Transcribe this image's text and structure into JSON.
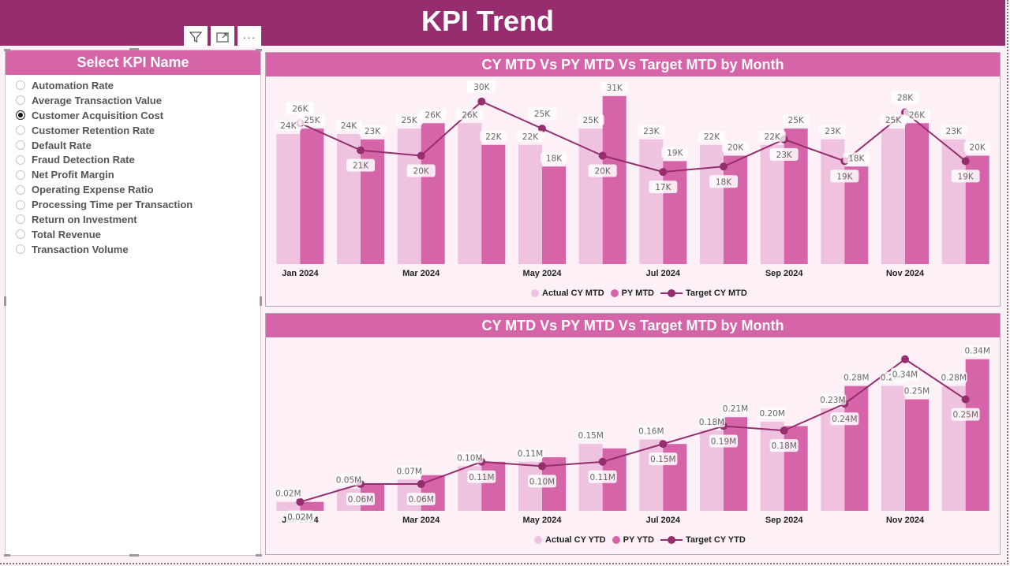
{
  "header": {
    "title": "KPI Trend"
  },
  "toolbar": {
    "filter_icon": "filter-icon",
    "focus_icon": "focus-mode-icon",
    "more_icon": "more-options-icon",
    "more_label": "···"
  },
  "slicer": {
    "title": "Select KPI Name",
    "selected": "Customer Acquisition Cost",
    "items": [
      {
        "label": "Automation Rate",
        "selected": false
      },
      {
        "label": "Average Transaction Value",
        "selected": false
      },
      {
        "label": "Customer Acquisition Cost",
        "selected": true
      },
      {
        "label": "Customer Retention Rate",
        "selected": false
      },
      {
        "label": "Default Rate",
        "selected": false
      },
      {
        "label": "Fraud Detection Rate",
        "selected": false
      },
      {
        "label": "Net Profit Margin",
        "selected": false
      },
      {
        "label": "Operating Expense Ratio",
        "selected": false
      },
      {
        "label": "Processing Time per Transaction",
        "selected": false
      },
      {
        "label": "Return on Investment",
        "selected": false
      },
      {
        "label": "Total Revenue",
        "selected": false
      },
      {
        "label": "Transaction Volume",
        "selected": false
      }
    ]
  },
  "colors": {
    "header": "#952d6e",
    "actual": "#efc3df",
    "py": "#d664a8",
    "target": "#952d6e",
    "card_head": "#d664a8"
  },
  "chart_data": [
    {
      "type": "bar",
      "title": "CY MTD Vs PY MTD Vs Target MTD by Month",
      "categories": [
        "Jan 2024",
        "Feb 2024",
        "Mar 2024",
        "Apr 2024",
        "May 2024",
        "Jun 2024",
        "Jul 2024",
        "Aug 2024",
        "Sep 2024",
        "Oct 2024",
        "Nov 2024",
        "Dec 2024"
      ],
      "tick_labels": [
        "Jan 2024",
        "",
        "Mar 2024",
        "",
        "May 2024",
        "",
        "Jul 2024",
        "",
        "Sep 2024",
        "",
        "Nov 2024",
        ""
      ],
      "unit": "K",
      "series": [
        {
          "name": "Actual CY MTD",
          "kind": "bar",
          "values": [
            24,
            24,
            25,
            26,
            22,
            25,
            23,
            22,
            22,
            23,
            25,
            23
          ]
        },
        {
          "name": "PY MTD",
          "kind": "bar",
          "values": [
            25,
            23,
            26,
            22,
            18,
            31,
            19,
            20,
            25,
            18,
            26,
            20
          ]
        },
        {
          "name": "Target CY MTD",
          "kind": "line",
          "values": [
            26,
            21,
            20,
            30,
            25,
            20,
            17,
            18,
            23,
            19,
            28,
            19
          ]
        }
      ],
      "labels": {
        "actual": [
          "24K",
          "24K",
          "25K",
          "26K",
          "22K",
          "25K",
          "23K",
          "22K",
          "22K",
          "23K",
          "25K",
          "23K"
        ],
        "py": [
          "25K",
          "23K",
          "26K",
          "22K",
          "18K",
          "31K",
          "19K",
          "20K",
          "25K",
          "18K",
          "26K",
          "20K"
        ],
        "target": [
          "26K",
          "21K",
          "20K",
          "30K",
          "25K",
          "20K",
          "17K",
          "18K",
          "23K",
          "19K",
          "28K",
          "19K"
        ]
      },
      "ylim": [
        0,
        32
      ],
      "legend": "bottom-center",
      "grid": false
    },
    {
      "type": "bar",
      "title": "CY MTD Vs PY MTD Vs Target MTD by Month",
      "categories": [
        "Jan 2024",
        "Feb 2024",
        "Mar 2024",
        "Apr 2024",
        "May 2024",
        "Jun 2024",
        "Jul 2024",
        "Aug 2024",
        "Sep 2024",
        "Oct 2024",
        "Nov 2024",
        "Dec 2024"
      ],
      "tick_labels": [
        "Jan 2024",
        "",
        "Mar 2024",
        "",
        "May 2024",
        "",
        "Jul 2024",
        "",
        "Sep 2024",
        "",
        "Nov 2024",
        ""
      ],
      "unit": "M",
      "series": [
        {
          "name": "Actual CY YTD",
          "kind": "bar",
          "values": [
            0.02,
            0.05,
            0.07,
            0.1,
            0.11,
            0.15,
            0.16,
            0.18,
            0.2,
            0.23,
            0.28,
            0.28
          ]
        },
        {
          "name": "PY YTD",
          "kind": "bar",
          "values": [
            0.02,
            0.06,
            0.08,
            0.11,
            0.12,
            0.14,
            0.15,
            0.21,
            0.19,
            0.28,
            0.25,
            0.34
          ]
        },
        {
          "name": "Target CY YTD",
          "kind": "line",
          "values": [
            0.02,
            0.06,
            0.06,
            0.11,
            0.1,
            0.11,
            0.15,
            0.19,
            0.18,
            0.24,
            0.34,
            0.25
          ]
        }
      ],
      "labels": {
        "actual": [
          "0.02M",
          "0.05M",
          "0.07M",
          "0.10M",
          "0.11M",
          "0.15M",
          "0.16M",
          "0.18M",
          "0.20M",
          "0.23M",
          "0.28M",
          "0.28M"
        ],
        "py": [
          "",
          "",
          "",
          "",
          "",
          "",
          "",
          "0.21M",
          "",
          "0.28M",
          "0.25M",
          "0.34M"
        ],
        "target": [
          "0.02M",
          "0.06M",
          "0.06M",
          "0.11M",
          "0.10M",
          "0.11M",
          "0.15M",
          "0.19M",
          "0.18M",
          "0.24M",
          "0.34M",
          "0.25M"
        ]
      },
      "ylim": [
        0,
        0.35
      ],
      "legend": "bottom-center",
      "grid": false
    }
  ]
}
